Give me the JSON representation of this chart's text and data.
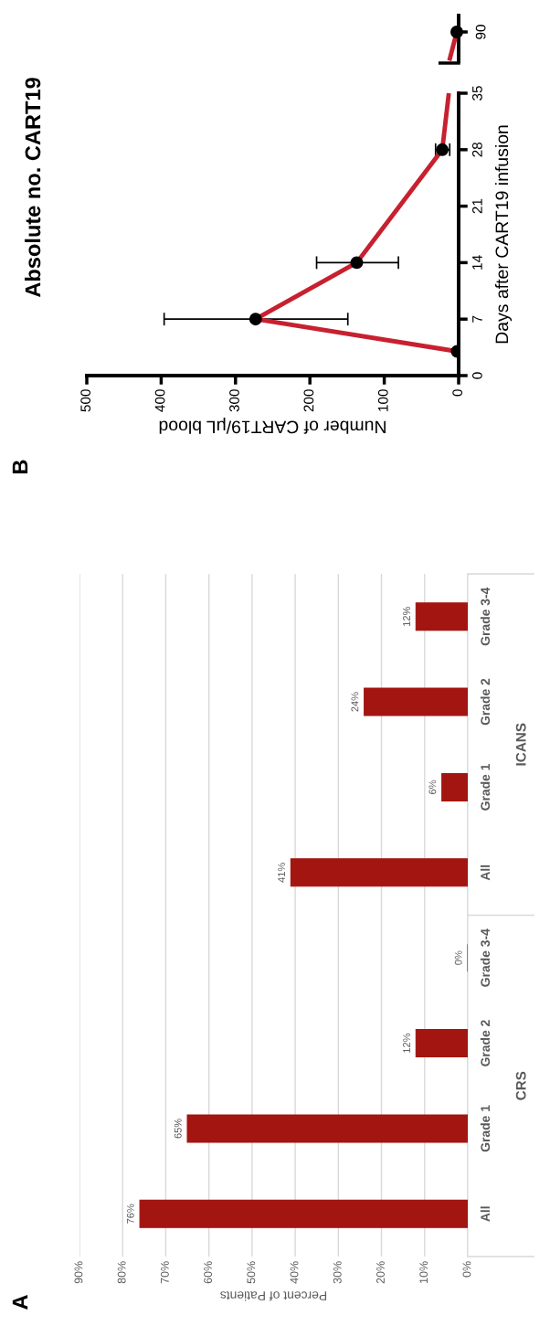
{
  "chart_data": [
    {
      "type": "bar",
      "orientation": "horizontal",
      "categories": [
        "Grade 3-4",
        "Grade 2",
        "Grade 1",
        "All",
        "Grade 3-4",
        "Grade 2",
        "Grade 1",
        "All"
      ],
      "values": [
        12,
        24,
        6,
        41,
        0,
        12,
        65,
        76
      ],
      "color": "#a31510",
      "value_labels": [
        "12%",
        "24%",
        "6%",
        "41%",
        "0%",
        "12%",
        "65%",
        "76%"
      ],
      "xlabel": "Percent of Patients",
      "xlim": [
        90,
        0
      ],
      "xticks": [
        {
          "value": 90,
          "label": "90%"
        },
        {
          "value": 80,
          "label": "80%"
        },
        {
          "value": 70,
          "label": "70%"
        },
        {
          "value": 60,
          "label": "60%"
        },
        {
          "value": 50,
          "label": "50%"
        },
        {
          "value": 40,
          "label": "40%"
        },
        {
          "value": 30,
          "label": "30%"
        },
        {
          "value": 20,
          "label": "20%"
        },
        {
          "value": 10,
          "label": "10%"
        },
        {
          "value": 0,
          "label": "0%"
        }
      ],
      "grid": "x",
      "annotations": [
        "A",
        "ICANS",
        "CRS"
      ]
    },
    {
      "type": "line",
      "title": "Absolute no. CART19",
      "xlabel": "Number of CART19/μL blood",
      "ylabel": "Days after CART19 infusion",
      "series": [
        {
          "color": "#c8202f",
          "x": [
            2,
            273,
            137,
            22
          ],
          "values": [
            3,
            7,
            14,
            28
          ],
          "xerrors": [
            null,
            [
              149,
              396
            ],
            [
              81,
              191
            ],
            [
              12,
              31
            ]
          ]
        }
      ],
      "marker": "circle",
      "xlim": [
        500,
        0
      ],
      "xticks": [
        500,
        400,
        300,
        200,
        100,
        0
      ],
      "ylim": [
        0,
        35
      ],
      "yticks": [
        0,
        7,
        14,
        21,
        28,
        35
      ],
      "annotations": [
        "B"
      ]
    },
    {
      "type": "other",
      "annotations": [
        "90"
      ]
    }
  ]
}
